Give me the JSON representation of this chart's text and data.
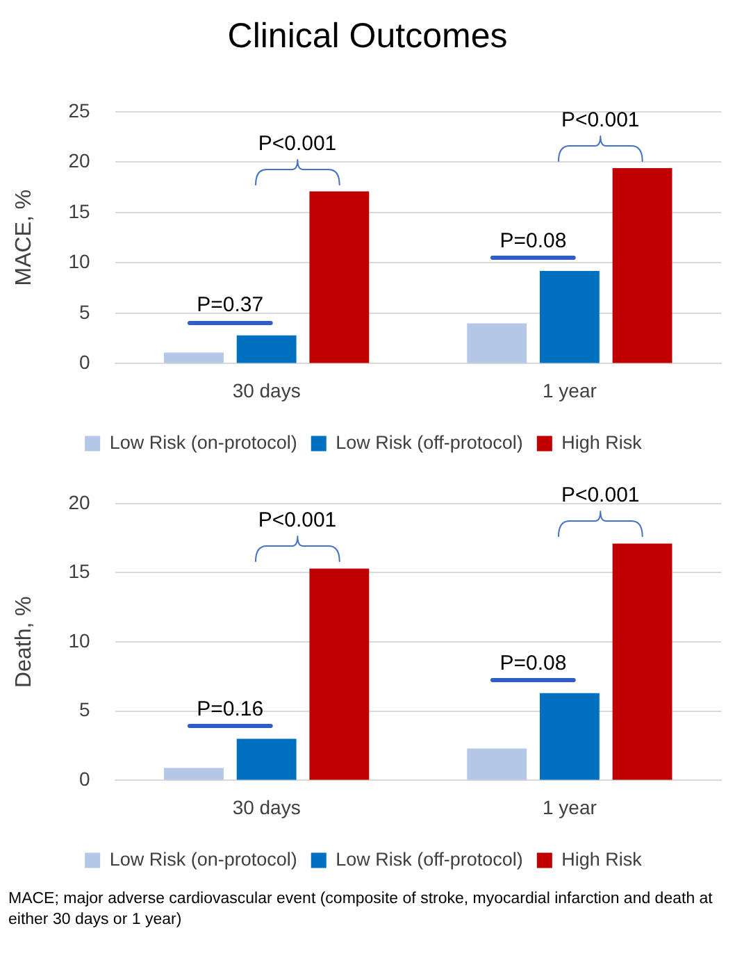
{
  "chart_data": [
    {
      "type": "bar",
      "title": "Clinical Outcomes",
      "ylabel": "MACE, %",
      "categories": [
        "30 days",
        "1 year"
      ],
      "series": [
        {
          "name": "Low Risk (on-protocol)",
          "color": "#b4c7e7",
          "values": [
            1.1,
            4.0
          ]
        },
        {
          "name": "Low Risk (off-protocol)",
          "color": "#0070c0",
          "values": [
            2.8,
            9.2
          ]
        },
        {
          "name": "High Risk",
          "color": "#c00000",
          "values": [
            17.1,
            19.4
          ]
        }
      ],
      "ylim": [
        0,
        25
      ],
      "yticks": [
        0,
        5,
        10,
        15,
        20,
        25
      ],
      "grid": "y",
      "legend": "bottom",
      "annotations": [
        "P<0.001",
        "P=0.37",
        "P<0.001",
        "P=0.08"
      ]
    },
    {
      "type": "bar",
      "ylabel": "Death, %",
      "categories": [
        "30 days",
        "1 year"
      ],
      "series": [
        {
          "name": "Low Risk (on-protocol)",
          "color": "#b4c7e7",
          "values": [
            0.9,
            2.3
          ]
        },
        {
          "name": "Low Risk (off-protocol)",
          "color": "#0070c0",
          "values": [
            3.0,
            6.3
          ]
        },
        {
          "name": "High Risk",
          "color": "#c00000",
          "values": [
            15.3,
            17.1
          ]
        }
      ],
      "ylim": [
        0,
        20
      ],
      "yticks": [
        0,
        5,
        10,
        15,
        20
      ],
      "grid": "y",
      "legend": "bottom",
      "annotations": [
        "P<0.001",
        "P=0.16",
        "P<0.001",
        "P=0.08",
        "MACE; major adverse cardiovascular event (composite of stroke, myocardial infarction and death at either 30 days or 1 year)"
      ]
    }
  ]
}
